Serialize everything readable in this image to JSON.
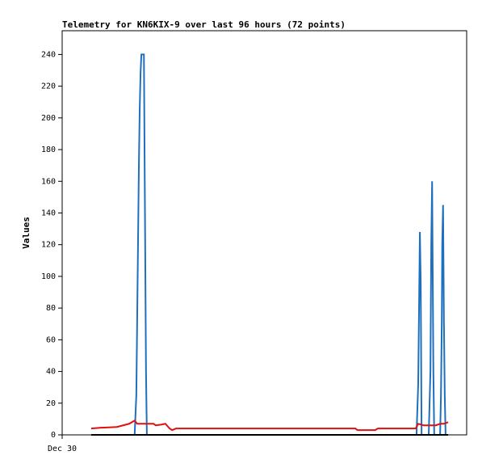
{
  "chart_data": {
    "type": "line",
    "title": "Telemetry for KN6KIX-9 over last 96 hours (72 points)",
    "y_label": "Values",
    "xlim": [
      0,
      96
    ],
    "xticks": [
      {
        "value": 0,
        "label": "Dec 30"
      }
    ],
    "ylim": [
      0,
      255
    ],
    "yticks": [
      0,
      20,
      40,
      60,
      80,
      100,
      120,
      140,
      160,
      180,
      200,
      220,
      240
    ],
    "series": [
      {
        "color": "#1f6fbf",
        "x": [
          6.9,
          17.2,
          17.6,
          17.8,
          18.0,
          18.2,
          18.4,
          18.6,
          18.8,
          19.4,
          19.5,
          19.7,
          19.9,
          20.1,
          84.1,
          84.5,
          84.9,
          85.1,
          85.3,
          87.0,
          87.4,
          87.6,
          87.8,
          87.9,
          88.1,
          88.3,
          89.7,
          89.9,
          90.1,
          90.2,
          90.4,
          90.6,
          90.8,
          91.0,
          91.6
        ],
        "values": [
          0,
          0,
          25,
          72,
          120,
          168,
          205,
          228,
          240,
          240,
          200,
          120,
          40,
          0,
          0,
          32,
          128,
          96,
          0,
          0,
          40,
          120,
          160,
          120,
          40,
          0,
          0,
          25,
          72,
          120,
          145,
          72,
          25,
          0,
          0
        ]
      },
      {
        "color": "#e01010",
        "x": [
          6.9,
          9.2,
          13.0,
          15.9,
          17.2,
          17.8,
          21.7,
          22.2,
          23.6,
          24.5,
          25.5,
          26.1,
          27.0,
          69.6,
          70.1,
          74.3,
          74.9,
          83.9,
          84.5,
          85.8,
          88.7,
          89.7,
          90.6,
          91.6
        ],
        "values": [
          4,
          4.5,
          5,
          7,
          9,
          7,
          7,
          6,
          6.5,
          7,
          4,
          3,
          4,
          4,
          3,
          3,
          4,
          4,
          7,
          6,
          6,
          7,
          7,
          8
        ]
      },
      {
        "color": "#000000",
        "x": [
          6.9,
          91.6
        ],
        "values": [
          0,
          0
        ]
      }
    ]
  }
}
